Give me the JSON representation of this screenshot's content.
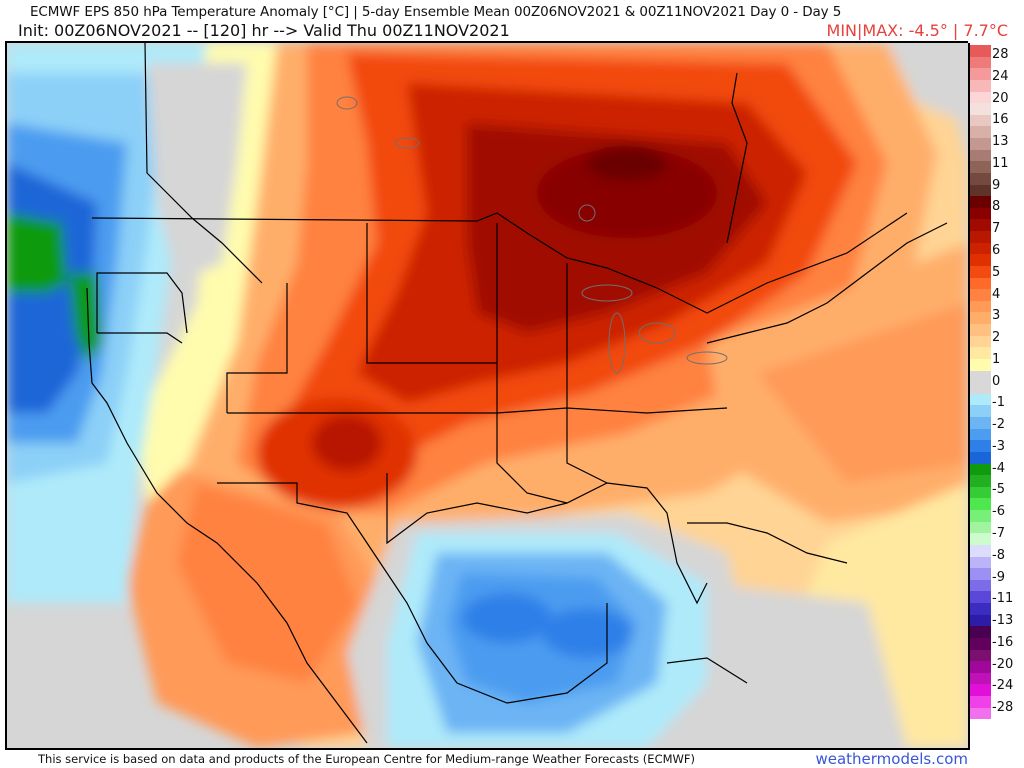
{
  "header": {
    "title_line": "ECMWF EPS 850 hPa Temperature Anomaly [°C] | 5-day Ensemble Mean 00Z06NOV2021 & 00Z11NOV2021   Day 0 - Day 5",
    "init_line": "Init: 00Z06NOV2021 -- [120] hr --> Valid Thu 00Z11NOV2021",
    "minmax": "MIN|MAX: -4.5° | 7.7°C",
    "minmax_color": "#e8403a"
  },
  "map": {
    "region": "North America / CONUS, Gulf of Mexico, Caribbean",
    "variable": "850 hPa Temperature Anomaly",
    "units": "°C",
    "min": -4.5,
    "max": 7.7,
    "features": [
      {
        "name": "warm core",
        "location": "Northern Ontario / Upper Midwest",
        "anomaly_approx": 7.5
      },
      {
        "name": "secondary warm max",
        "location": "New Mexico / West Texas",
        "anomaly_approx": 6
      },
      {
        "name": "cold anomaly",
        "location": "Pacific Northwest coast (Oregon offshore)",
        "anomaly_approx": -4.5
      },
      {
        "name": "cold anomaly",
        "location": "Gulf of Mexico",
        "anomaly_approx": -3.5
      }
    ]
  },
  "colorbar": {
    "labels": [
      "28",
      "24",
      "20",
      "16",
      "13",
      "11",
      "9",
      "8",
      "7",
      "6",
      "5",
      "4",
      "3",
      "2",
      "1",
      "0",
      "-1",
      "-2",
      "-3",
      "-4",
      "-5",
      "-6",
      "-7",
      "-8",
      "-9",
      "-11",
      "-13",
      "-16",
      "-20",
      "-24",
      "-28"
    ],
    "bins": [
      "#e85a5a",
      "#ef7a7a",
      "#f49a9a",
      "#f8b8b8",
      "#fcd6d6",
      "#f4e0dc",
      "#e8c8c0",
      "#d8b0a8",
      "#c49890",
      "#a87c72",
      "#8e6458",
      "#744a40",
      "#5e342a",
      "#6a0000",
      "#880000",
      "#a00a00",
      "#b81800",
      "#cc2200",
      "#e03000",
      "#f24a10",
      "#ff6a2a",
      "#ff8240",
      "#ff9a58",
      "#ffae6a",
      "#ffc080",
      "#ffd494",
      "#ffe8a0",
      "#fffcae",
      "#d8d8d8",
      "#d8d8d8",
      "#aeeafa",
      "#8cd0f8",
      "#6cb4f4",
      "#4c9cf0",
      "#2e80e8",
      "#1a66d8",
      "#109a10",
      "#22b022",
      "#36cc36",
      "#4ee84e",
      "#78f078",
      "#a0f4a0",
      "#ccfccc",
      "#dcdcfc",
      "#bcb4f8",
      "#9c90f4",
      "#7c6ce8",
      "#5c48d8",
      "#3c2cc0",
      "#2c1ca8",
      "#4a0050",
      "#62005e",
      "#7c1070",
      "#a0089c",
      "#c010b8",
      "#e010d8",
      "#f040e8",
      "#f070f0"
    ]
  },
  "footer": {
    "attribution": "This service is based on data and products of the European Centre for Medium-range Weather Forecasts (ECMWF)",
    "brand": "weathermodels.com",
    "brand_color": "#3a55d6"
  }
}
